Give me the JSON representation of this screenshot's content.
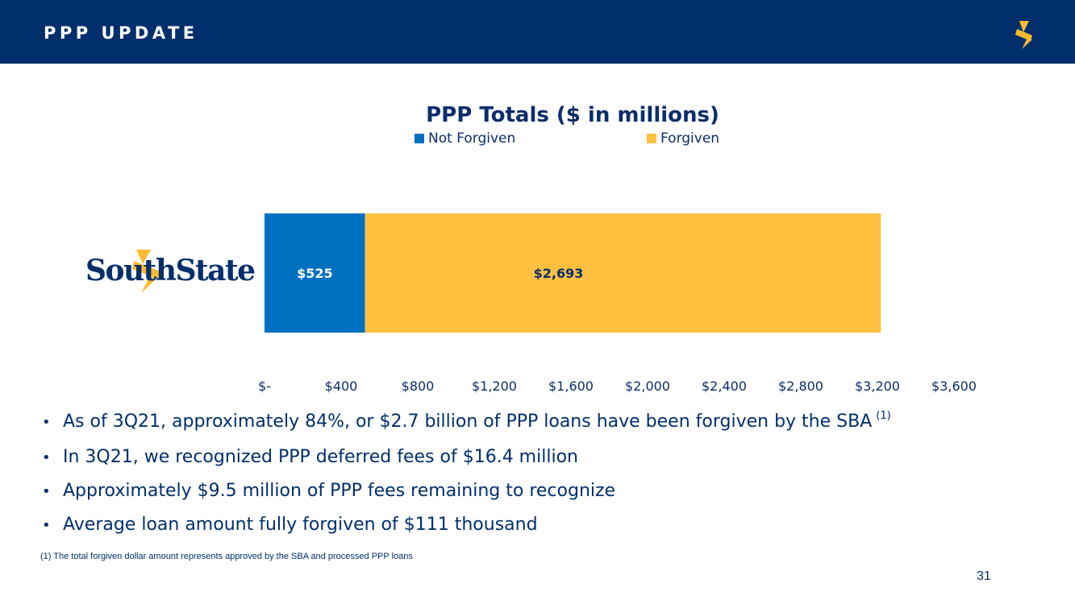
{
  "header": {
    "title": "PPP UPDATE"
  },
  "brand": {
    "name": "SouthState"
  },
  "chart_data": {
    "type": "bar",
    "orientation": "horizontal",
    "stacked": true,
    "title": "PPP Totals ($ in millions)",
    "categories": [
      "SouthState"
    ],
    "series": [
      {
        "name": "Not Forgiven",
        "values": [
          525
        ],
        "label": "$525",
        "color": "#0070c0"
      },
      {
        "name": "Forgiven",
        "values": [
          2693
        ],
        "label": "$2,693",
        "color": "#ffc040"
      }
    ],
    "xlim": [
      0,
      3600
    ],
    "x_ticks": [
      0,
      400,
      800,
      1200,
      1600,
      2000,
      2400,
      2800,
      3200,
      3600
    ],
    "x_tick_labels": [
      "$-",
      "$400",
      "$800",
      "$1,200",
      "$1,600",
      "$2,000",
      "$2,400",
      "$2,800",
      "$3,200",
      "$3,600"
    ],
    "legend_position": "top",
    "grid": false
  },
  "bullets": [
    {
      "text": "As of 3Q21, approximately 84%, or $2.7 billion of PPP loans have been forgiven by the SBA",
      "superscript": "(1)"
    },
    {
      "text": "In 3Q21, we recognized PPP deferred fees of $16.4 million"
    },
    {
      "text": "Approximately $9.5 million of PPP fees remaining to recognize"
    },
    {
      "text": "Average loan amount fully forgiven of $111 thousand"
    }
  ],
  "footnote": "(1)  The total forgiven dollar amount represents approved by the SBA and processed PPP loans",
  "page_number": "31",
  "colors": {
    "header_bg": "#002f6c",
    "brand_gold": "#fdbb30",
    "text_navy": "#002f6c"
  }
}
